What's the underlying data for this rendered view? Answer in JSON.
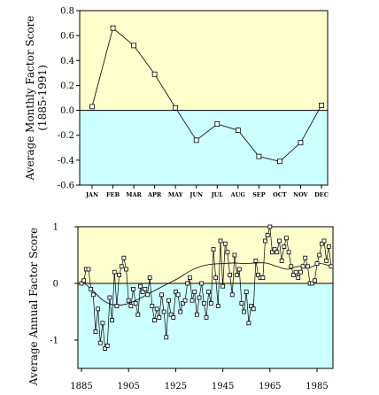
{
  "chart_data": [
    {
      "type": "line",
      "title": "",
      "ylabel_lines": [
        "Average Monthly Factor Score",
        "(1885-1991)"
      ],
      "xlabel": "",
      "categories": [
        "JAN",
        "FEB",
        "MAR",
        "APR",
        "MAY",
        "JUN",
        "JUL",
        "AUG",
        "SEP",
        "OCT",
        "NOV",
        "DEC"
      ],
      "values": [
        0.03,
        0.66,
        0.52,
        0.29,
        0.02,
        -0.24,
        -0.11,
        -0.16,
        -0.37,
        -0.41,
        -0.26,
        0.04
      ],
      "ylim": [
        -0.6,
        0.8
      ],
      "yticks": [
        "0.8",
        "0.6",
        "0.4",
        "0.2",
        "0.0",
        "-0.2",
        "-0.4",
        "-0.6"
      ],
      "ytick_values": [
        0.8,
        0.6,
        0.4,
        0.2,
        0.0,
        -0.2,
        -0.4,
        -0.6
      ],
      "marker": "open-square",
      "grid": false,
      "background": {
        "positive": "#ffffcc",
        "negative": "#ccffff"
      }
    },
    {
      "type": "line",
      "title": "",
      "ylabel": "Average Annual Factor Score",
      "xlabel": "",
      "x": [
        1885,
        1886,
        1887,
        1888,
        1889,
        1890,
        1891,
        1892,
        1893,
        1894,
        1895,
        1896,
        1897,
        1898,
        1899,
        1900,
        1901,
        1902,
        1903,
        1904,
        1905,
        1906,
        1907,
        1908,
        1909,
        1910,
        1911,
        1912,
        1913,
        1914,
        1915,
        1916,
        1917,
        1918,
        1919,
        1920,
        1921,
        1922,
        1923,
        1924,
        1925,
        1926,
        1927,
        1928,
        1929,
        1930,
        1931,
        1932,
        1933,
        1934,
        1935,
        1936,
        1937,
        1938,
        1939,
        1940,
        1941,
        1942,
        1943,
        1944,
        1945,
        1946,
        1947,
        1948,
        1949,
        1950,
        1951,
        1952,
        1953,
        1954,
        1955,
        1956,
        1957,
        1958,
        1959,
        1960,
        1961,
        1962,
        1963,
        1964,
        1965,
        1966,
        1967,
        1968,
        1969,
        1970,
        1971,
        1972,
        1973,
        1974,
        1975,
        1976,
        1977,
        1978,
        1979,
        1980,
        1981,
        1982,
        1983,
        1984,
        1985,
        1986,
        1987,
        1988,
        1989,
        1990,
        1991
      ],
      "values": [
        0.0,
        0.05,
        0.25,
        0.25,
        -0.1,
        -0.2,
        -0.85,
        -0.45,
        -1.05,
        -0.7,
        -1.15,
        -1.1,
        -0.25,
        -0.65,
        0.2,
        -0.4,
        0.15,
        0.3,
        0.45,
        0.25,
        -0.3,
        -0.4,
        -0.1,
        -0.35,
        -0.55,
        -0.05,
        -0.15,
        -0.1,
        -0.2,
        0.1,
        -0.4,
        -0.65,
        -0.45,
        -0.6,
        -0.2,
        -0.5,
        -0.95,
        -0.3,
        -0.55,
        -0.6,
        -0.15,
        -0.2,
        -0.5,
        -0.35,
        -0.3,
        0.0,
        0.1,
        -0.3,
        -0.15,
        -0.55,
        -0.25,
        0.0,
        -0.35,
        -0.6,
        -0.15,
        -0.35,
        0.6,
        0.1,
        -0.4,
        0.75,
        -0.05,
        0.7,
        0.55,
        0.15,
        -0.2,
        0.5,
        0.15,
        0.25,
        -0.35,
        -0.5,
        -0.15,
        -0.7,
        -0.4,
        -0.45,
        0.4,
        0.15,
        0.1,
        0.1,
        0.75,
        0.85,
        1.0,
        0.55,
        0.6,
        0.55,
        0.75,
        0.4,
        0.65,
        0.8,
        0.55,
        0.3,
        0.15,
        0.2,
        0.1,
        0.2,
        0.3,
        0.45,
        0.3,
        0.0,
        0.0,
        0.05,
        0.35,
        0.5,
        0.7,
        0.75,
        0.4,
        0.65,
        0.3
      ],
      "trend": {
        "type": "smooth",
        "values": [
          0.05,
          -0.12,
          -0.3,
          -0.38,
          -0.37,
          -0.3,
          -0.2,
          -0.1,
          0.0,
          0.1,
          0.22,
          0.3,
          0.34,
          0.35,
          0.36,
          0.35,
          0.36,
          0.36,
          0.3,
          0.25,
          0.3,
          0.28,
          0.35,
          0.3
        ]
      },
      "xlim": [
        1885,
        1991
      ],
      "xticks": [
        1885,
        1905,
        1925,
        1945,
        1965,
        1985
      ],
      "ylim": [
        -1.5,
        1.0
      ],
      "yticks": [
        "1",
        "0",
        "-1"
      ],
      "ytick_values": [
        1,
        0,
        -1
      ],
      "marker": "open-square",
      "grid": false,
      "background": {
        "positive": "#ffffcc",
        "negative": "#ccffff"
      }
    }
  ]
}
